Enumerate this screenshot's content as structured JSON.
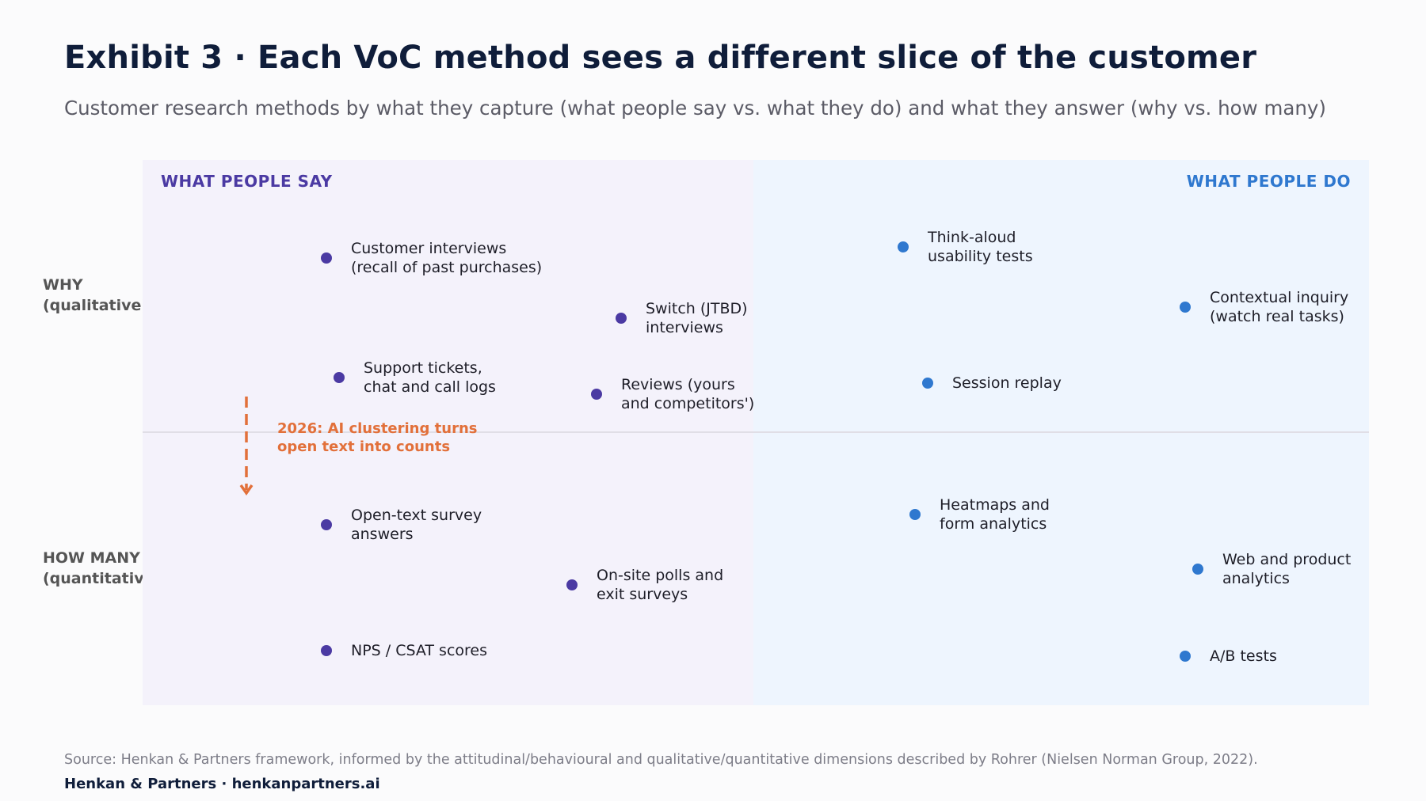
{
  "title": "Exhibit 3 · Each VoC method sees a different slice of the customer",
  "subtitle": "Customer research methods by what they capture (what people say vs. what they do) and what they answer (why vs. how many)",
  "columns": {
    "say": "WHAT PEOPLE SAY",
    "do": "WHAT PEOPLE DO"
  },
  "rows": {
    "why": [
      "WHY",
      "(qualitative)"
    ],
    "how_many": [
      "HOW MANY",
      "(quantitative)"
    ]
  },
  "colors": {
    "say": "#4b3aa3",
    "do": "#2f78cf",
    "annotation": "#e2703a"
  },
  "methods": [
    {
      "lines": [
        "Customer interviews",
        "(recall of past purchases)"
      ],
      "side": "say"
    },
    {
      "lines": [
        "Switch (JTBD)",
        "interviews"
      ],
      "side": "say"
    },
    {
      "lines": [
        "Support tickets,",
        "chat and call logs"
      ],
      "side": "say"
    },
    {
      "lines": [
        "Reviews (yours",
        "and competitors')"
      ],
      "side": "say"
    },
    {
      "lines": [
        "Open-text survey",
        "answers"
      ],
      "side": "say"
    },
    {
      "lines": [
        "On-site polls and",
        "exit surveys"
      ],
      "side": "say"
    },
    {
      "lines": [
        "NPS / CSAT scores"
      ],
      "side": "say"
    },
    {
      "lines": [
        "Think-aloud",
        "usability tests"
      ],
      "side": "do"
    },
    {
      "lines": [
        "Contextual inquiry",
        "(watch real tasks)"
      ],
      "side": "do"
    },
    {
      "lines": [
        "Session replay"
      ],
      "side": "do"
    },
    {
      "lines": [
        "Heatmaps and",
        "form analytics"
      ],
      "side": "do"
    },
    {
      "lines": [
        "Web and product",
        "analytics"
      ],
      "side": "do"
    },
    {
      "lines": [
        "A/B tests"
      ],
      "side": "do"
    }
  ],
  "annotation": {
    "lines": [
      "2026: AI clustering turns",
      "open text into counts"
    ]
  },
  "source": "Source: Henkan & Partners framework, informed by the attitudinal/behavioural and qualitative/quantitative dimensions described by Rohrer (Nielsen Norman Group, 2022).",
  "brand": "Henkan & Partners · henkanpartners.ai"
}
